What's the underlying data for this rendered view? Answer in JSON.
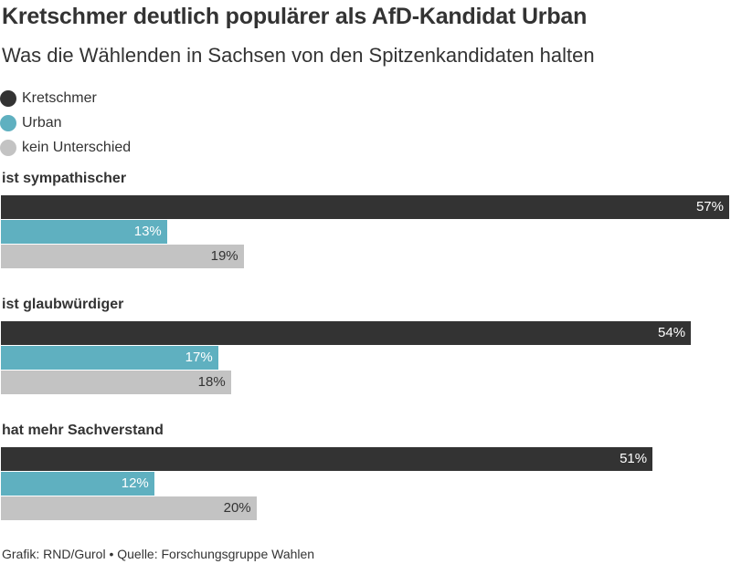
{
  "chart_data": {
    "type": "bar",
    "orientation": "horizontal",
    "title": "Kretschmer deutlich populärer als AfD-Kandidat Urban",
    "subtitle": "Was die Wählenden in Sachsen von den Spitzenkandidaten halten",
    "categories": [
      "ist sympathischer",
      "ist glaubwürdiger",
      "hat mehr Sachverstand"
    ],
    "series": [
      {
        "name": "Kretschmer",
        "color": "#333333",
        "label_color": "#ffffff",
        "values": [
          57,
          54,
          51
        ]
      },
      {
        "name": "Urban",
        "color": "#5fb0c0",
        "label_color": "#ffffff",
        "values": [
          13,
          17,
          12
        ]
      },
      {
        "name": "kein Unterschied",
        "color": "#c3c3c3",
        "label_color": "#333333",
        "values": [
          19,
          18,
          20
        ]
      }
    ],
    "value_suffix": "%",
    "xlim": [
      0,
      57
    ],
    "grid": false,
    "legend_position": "top-left"
  },
  "footer": "Grafik: RND/Gurol • Quelle: Forschungsgruppe Wahlen"
}
